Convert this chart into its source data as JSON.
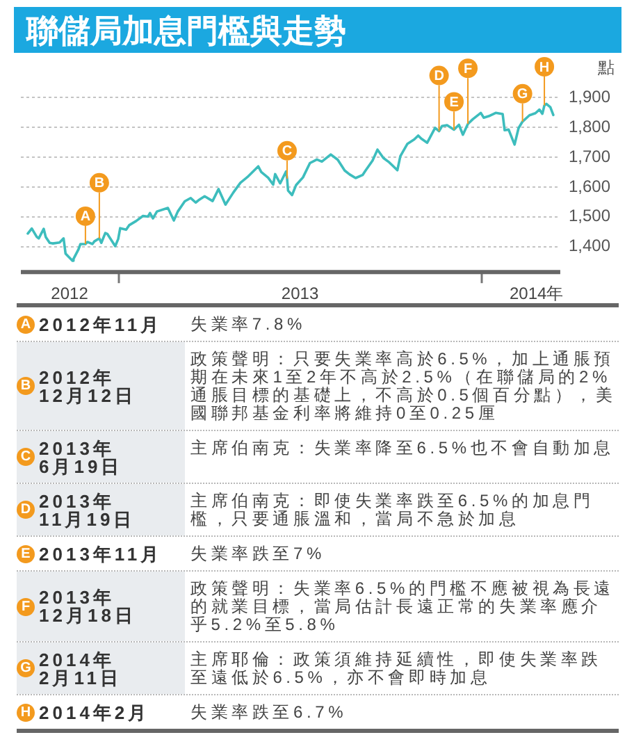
{
  "chart_data": [
    {
      "type": "line",
      "title": "聯儲局加息門檻與走勢",
      "ylabel": "點",
      "x": [
        "2012-10-01",
        "2012-10-05",
        "2012-10-10",
        "2012-10-12",
        "2012-10-17",
        "2012-10-19",
        "2012-10-23",
        "2012-10-26",
        "2012-11-02",
        "2012-11-06",
        "2012-11-08",
        "2012-11-15",
        "2012-11-16",
        "2012-11-21",
        "2012-11-23",
        "2012-11-28",
        "2012-11-30",
        "2012-12-05",
        "2012-12-07",
        "2012-12-12",
        "2012-12-14",
        "2012-12-18",
        "2012-12-20",
        "2012-12-28",
        "2012-12-31",
        "2013-01-02",
        "2013-01-08",
        "2013-01-11",
        "2013-01-18",
        "2013-01-25",
        "2013-01-30",
        "2013-02-01",
        "2013-02-04",
        "2013-02-08",
        "2013-02-19",
        "2013-02-25",
        "2013-03-01",
        "2013-03-08",
        "2013-03-14",
        "2013-03-19",
        "2013-03-22",
        "2013-03-28",
        "2013-04-05",
        "2013-04-11",
        "2013-04-18",
        "2013-04-26",
        "2013-05-03",
        "2013-05-10",
        "2013-05-21",
        "2013-05-24",
        "2013-05-31",
        "2013-06-05",
        "2013-06-07",
        "2013-06-12",
        "2013-06-18",
        "2013-06-19",
        "2013-06-20",
        "2013-06-24",
        "2013-06-28",
        "2013-07-05",
        "2013-07-12",
        "2013-07-19",
        "2013-07-24",
        "2013-08-02",
        "2013-08-09",
        "2013-08-16",
        "2013-08-21",
        "2013-08-27",
        "2013-09-03",
        "2013-09-06",
        "2013-09-13",
        "2013-09-18",
        "2013-09-24",
        "2013-09-30",
        "2013-10-08",
        "2013-10-11",
        "2013-10-18",
        "2013-10-25",
        "2013-10-29",
        "2013-11-01",
        "2013-11-07",
        "2013-11-15",
        "2013-11-19",
        "2013-11-22",
        "2013-11-27",
        "2013-12-04",
        "2013-12-09",
        "2013-12-13",
        "2013-12-18",
        "2013-12-23",
        "2013-12-31",
        "2014-01-03",
        "2014-01-08",
        "2014-01-15",
        "2014-01-22",
        "2014-01-24",
        "2014-01-28",
        "2014-02-03",
        "2014-02-07",
        "2014-02-11",
        "2014-02-18",
        "2014-02-24",
        "2014-02-28",
        "2014-03-03",
        "2014-03-05",
        "2014-03-07",
        "2014-03-11",
        "2014-03-14"
      ],
      "values": [
        1444,
        1461,
        1433,
        1428,
        1460,
        1433,
        1413,
        1411,
        1414,
        1428,
        1377,
        1353,
        1359,
        1391,
        1409,
        1409,
        1416,
        1409,
        1418,
        1428,
        1413,
        1446,
        1443,
        1402,
        1426,
        1462,
        1457,
        1472,
        1486,
        1503,
        1501,
        1513,
        1495,
        1518,
        1530,
        1488,
        1518,
        1552,
        1563,
        1548,
        1556,
        1569,
        1553,
        1593,
        1541,
        1582,
        1614,
        1633,
        1669,
        1650,
        1631,
        1608,
        1643,
        1612,
        1652,
        1628,
        1588,
        1573,
        1606,
        1632,
        1680,
        1692,
        1685,
        1709,
        1691,
        1655,
        1642,
        1630,
        1640,
        1655,
        1688,
        1725,
        1697,
        1682,
        1656,
        1703,
        1744,
        1759,
        1772,
        1762,
        1748,
        1798,
        1787,
        1804,
        1807,
        1792,
        1808,
        1775,
        1811,
        1827,
        1848,
        1832,
        1837,
        1848,
        1844,
        1790,
        1792,
        1742,
        1797,
        1819,
        1840,
        1847,
        1859,
        1845,
        1873,
        1878,
        1867,
        1841
      ],
      "color": "#3dbdbd",
      "xlim": [
        "2012-09-24",
        "2014-03-21"
      ],
      "xticks": [
        {
          "value": "2012-11-12",
          "label": "2012"
        },
        {
          "value": "2013-01-01",
          "label": null
        },
        {
          "value": "2013-07-02",
          "label": "2013"
        },
        {
          "value": "2014-01-01",
          "label": null
        },
        {
          "value": "2014-02-25",
          "label": "2014年"
        }
      ],
      "ylim": [
        1320,
        1900
      ],
      "yticks": [
        {
          "value": 1400,
          "label": "1,400"
        },
        {
          "value": 1500,
          "label": "1,500"
        },
        {
          "value": 1600,
          "label": "1,600"
        },
        {
          "value": 1700,
          "label": "1,700"
        },
        {
          "value": 1800,
          "label": "1,800"
        },
        {
          "value": 1900,
          "label": "1,900"
        }
      ],
      "grid": "y",
      "annotations": [
        {
          "text": "A",
          "x": "2012-11-28",
          "y": 1409
        },
        {
          "text": "B",
          "x": "2012-12-12",
          "y": 1428
        },
        {
          "text": "C",
          "x": "2013-06-19",
          "y": 1628
        },
        {
          "text": "D",
          "x": "2013-11-19",
          "y": 1787
        },
        {
          "text": "E",
          "x": "2013-12-04",
          "y": 1792
        },
        {
          "text": "F",
          "x": "2013-12-18",
          "y": 1811
        },
        {
          "text": "G",
          "x": "2014-02-11",
          "y": 1819
        },
        {
          "text": "H",
          "x": "2014-03-05",
          "y": 1873
        }
      ]
    },
    {
      "type": "other",
      "annotations": [
        "A",
        "2012年11月",
        "失業率7.8%",
        "B",
        "2012年 12月12日",
        "政策聲明：只要失業率高於6.5%，加上通脹預期在未來1至2年不高於2.5%（在聯儲局的2%通脹目標的基礎上，不高於0.5個百分點），美國聯邦基金利率將維持0至0.25厘",
        "C",
        "2013年 6月19日",
        "主席伯南克：失業率降至6.5%也不會自動加息",
        "D",
        "2013年 11月19日",
        "主席伯南克：即使失業率跌至6.5%的加息門檻，只要通脹溫和，當局不急於加息",
        "E",
        "2013年11月",
        "失業率跌至7%",
        "F",
        "2013年 12月18日",
        "政策聲明：失業率6.5%的門檻不應被視為長遠的就業目標，當局估計長遠正常的失業率應介乎5.2%至5.8%",
        "G",
        "2014年 2月11日",
        "主席耶倫：政策須維持延續性，即使失業率跌至遠低於6.5%，亦不會即時加息",
        "H",
        "2014年2月",
        "失業率跌至6.7%"
      ]
    }
  ]
}
